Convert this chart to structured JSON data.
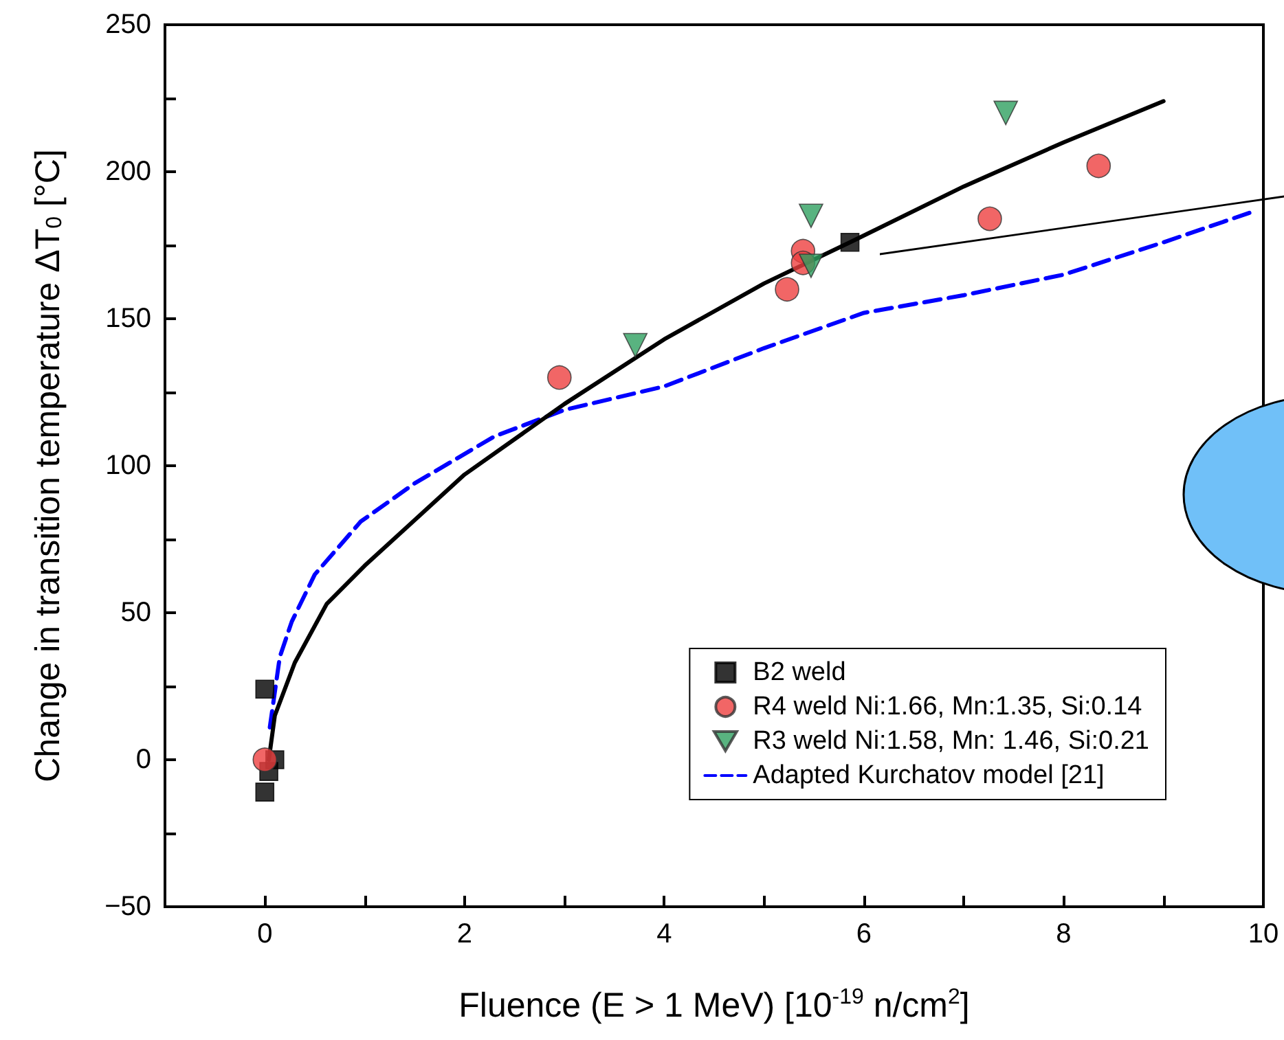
{
  "chart_data": {
    "type": "scatter",
    "xlabel": "Fluence (E > 1 MeV) [10$^{-19}$ n/cm$^{2}$]",
    "ylabel": "Change in transition temperature ΔT$_{0}$ [°C]",
    "xlim": [
      -1,
      10
    ],
    "xticks": [
      {
        "value": -1,
        "label": null
      },
      0,
      {
        "value": 1,
        "label": null
      },
      2,
      {
        "value": 3,
        "label": null
      },
      4,
      {
        "value": 5,
        "label": null
      },
      6,
      {
        "value": 7,
        "label": null
      },
      8,
      {
        "value": 9,
        "label": null
      },
      10
    ],
    "ylim": [
      -50,
      250
    ],
    "yticks": [
      -50,
      {
        "value": -25,
        "label": null
      },
      0,
      {
        "value": 25,
        "label": null
      },
      50,
      {
        "value": 75,
        "label": null
      },
      100,
      {
        "value": 125,
        "label": null
      },
      150,
      {
        "value": 175,
        "label": null
      },
      200,
      {
        "value": 225,
        "label": null
      },
      250
    ],
    "grid": false,
    "legend": "bottom right",
    "series": [
      {
        "name": "B2 weld",
        "marker": "square",
        "color": "#000000",
        "x": [
          0,
          0.1,
          0.04,
          0,
          5.86
        ],
        "values": [
          24,
          0,
          -4,
          -11,
          176
        ]
      },
      {
        "name": "R4 weld Ni:1.66, Mn:1.35, Si:0.14",
        "marker": "circle",
        "color": "#ee4040",
        "x": [
          0,
          2.95,
          5.23,
          5.39,
          5.39,
          7.26,
          8.35
        ],
        "values": [
          0,
          130,
          160,
          173,
          169,
          184,
          202
        ]
      },
      {
        "name": "R3 weld Ni:1.58, Mn: 1.46, Si:0.21",
        "marker": "triangle",
        "color": "#30a060",
        "x": [
          3.71,
          5.47,
          5.47,
          7.42
        ],
        "values": [
          141,
          185,
          168,
          220
        ]
      },
      {
        "name": "Adapted Kurchatov model [21]",
        "type": "line",
        "marker": "none",
        "line_style": "dashed",
        "color": "#0000ff",
        "x": [
          0.05,
          0.15,
          0.27,
          0.5,
          0.96,
          1.5,
          2.3,
          3,
          4,
          5,
          6,
          7,
          8,
          9,
          9.86
        ],
        "values": [
          11,
          35,
          47,
          63,
          81,
          94,
          110,
          119,
          127,
          140,
          152,
          158,
          165,
          176,
          186
        ]
      },
      {
        "type": "line",
        "marker": "none",
        "line_style": "solid",
        "color": "#000000",
        "x": [
          0.04,
          0.1,
          0.3,
          0.62,
          1,
          2,
          3,
          4,
          5,
          5.86,
          7,
          8,
          9
        ],
        "values": [
          0,
          15,
          33,
          53,
          66,
          97,
          121,
          143,
          162,
          176,
          195,
          210,
          224
        ]
      }
    ]
  }
}
